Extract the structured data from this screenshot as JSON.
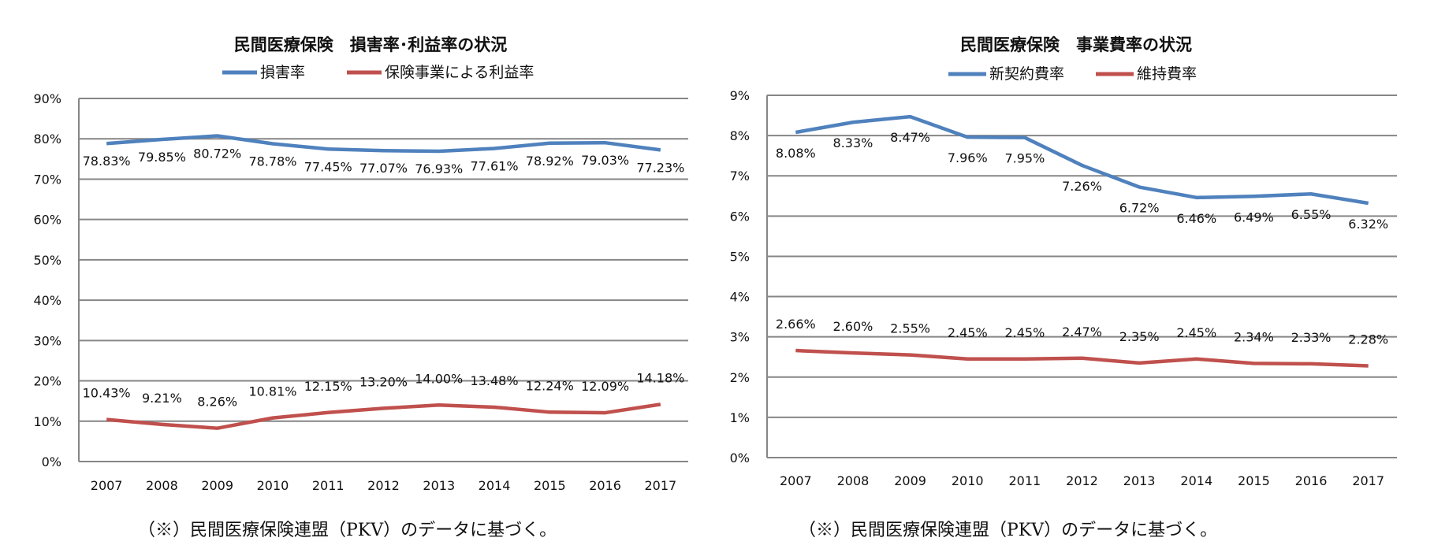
{
  "chart_data": [
    {
      "type": "line",
      "title": "民間医療保険　損害率･利益率の状況",
      "categories": [
        "2007",
        "2008",
        "2009",
        "2010",
        "2011",
        "2012",
        "2013",
        "2014",
        "2015",
        "2016",
        "2017"
      ],
      "series": [
        {
          "name": "損害率",
          "color": "#4f81bd",
          "values": [
            78.83,
            79.85,
            80.72,
            78.78,
            77.45,
            77.07,
            76.93,
            77.61,
            78.92,
            79.03,
            77.23
          ],
          "labels": [
            "78.83%",
            "79.85%",
            "80.72%",
            "78.78%",
            "77.45%",
            "77.07%",
            "76.93%",
            "77.61%",
            "78.92%",
            "79.03%",
            "77.23%"
          ]
        },
        {
          "name": "保険事業による利益率",
          "color": "#c0504d",
          "values": [
            10.43,
            9.21,
            8.26,
            10.81,
            12.15,
            13.2,
            14.0,
            13.48,
            12.24,
            12.09,
            14.18
          ],
          "labels": [
            "10.43%",
            "9.21%",
            "8.26%",
            "10.81%",
            "12.15%",
            "13.20%",
            "14.00%",
            "13.48%",
            "12.24%",
            "12.09%",
            "14.18%"
          ]
        }
      ],
      "ylim": [
        0,
        90
      ],
      "yticks": [
        "0%",
        "10%",
        "20%",
        "30%",
        "40%",
        "50%",
        "60%",
        "70%",
        "80%",
        "90%"
      ],
      "grid": true,
      "legend": "top",
      "footnote": "（※）民間医療保険連盟（PKV）のデータに基づく。"
    },
    {
      "type": "line",
      "title": "民間医療保険　事業費率の状況",
      "categories": [
        "2007",
        "2008",
        "2009",
        "2010",
        "2011",
        "2012",
        "2013",
        "2014",
        "2015",
        "2016",
        "2017"
      ],
      "series": [
        {
          "name": "新契約費率",
          "color": "#4f81bd",
          "values": [
            8.08,
            8.33,
            8.47,
            7.96,
            7.95,
            7.26,
            6.72,
            6.46,
            6.49,
            6.55,
            6.32
          ],
          "labels": [
            "8.08%",
            "8.33%",
            "8.47%",
            "7.96%",
            "7.95%",
            "7.26%",
            "6.72%",
            "6.46%",
            "6.49%",
            "6.55%",
            "6.32%"
          ]
        },
        {
          "name": "維持費率",
          "color": "#c0504d",
          "values": [
            2.66,
            2.6,
            2.55,
            2.45,
            2.45,
            2.47,
            2.35,
            2.45,
            2.34,
            2.33,
            2.28
          ],
          "labels": [
            "2.66%",
            "2.60%",
            "2.55%",
            "2.45%",
            "2.45%",
            "2.47%",
            "2.35%",
            "2.45%",
            "2.34%",
            "2.33%",
            "2.28%"
          ]
        }
      ],
      "ylim": [
        0,
        9
      ],
      "yticks": [
        "0%",
        "1%",
        "2%",
        "3%",
        "4%",
        "5%",
        "6%",
        "7%",
        "8%",
        "9%"
      ],
      "grid": true,
      "legend": "top",
      "footnote": "（※）民間医療保険連盟（PKV）のデータに基づく。"
    }
  ]
}
